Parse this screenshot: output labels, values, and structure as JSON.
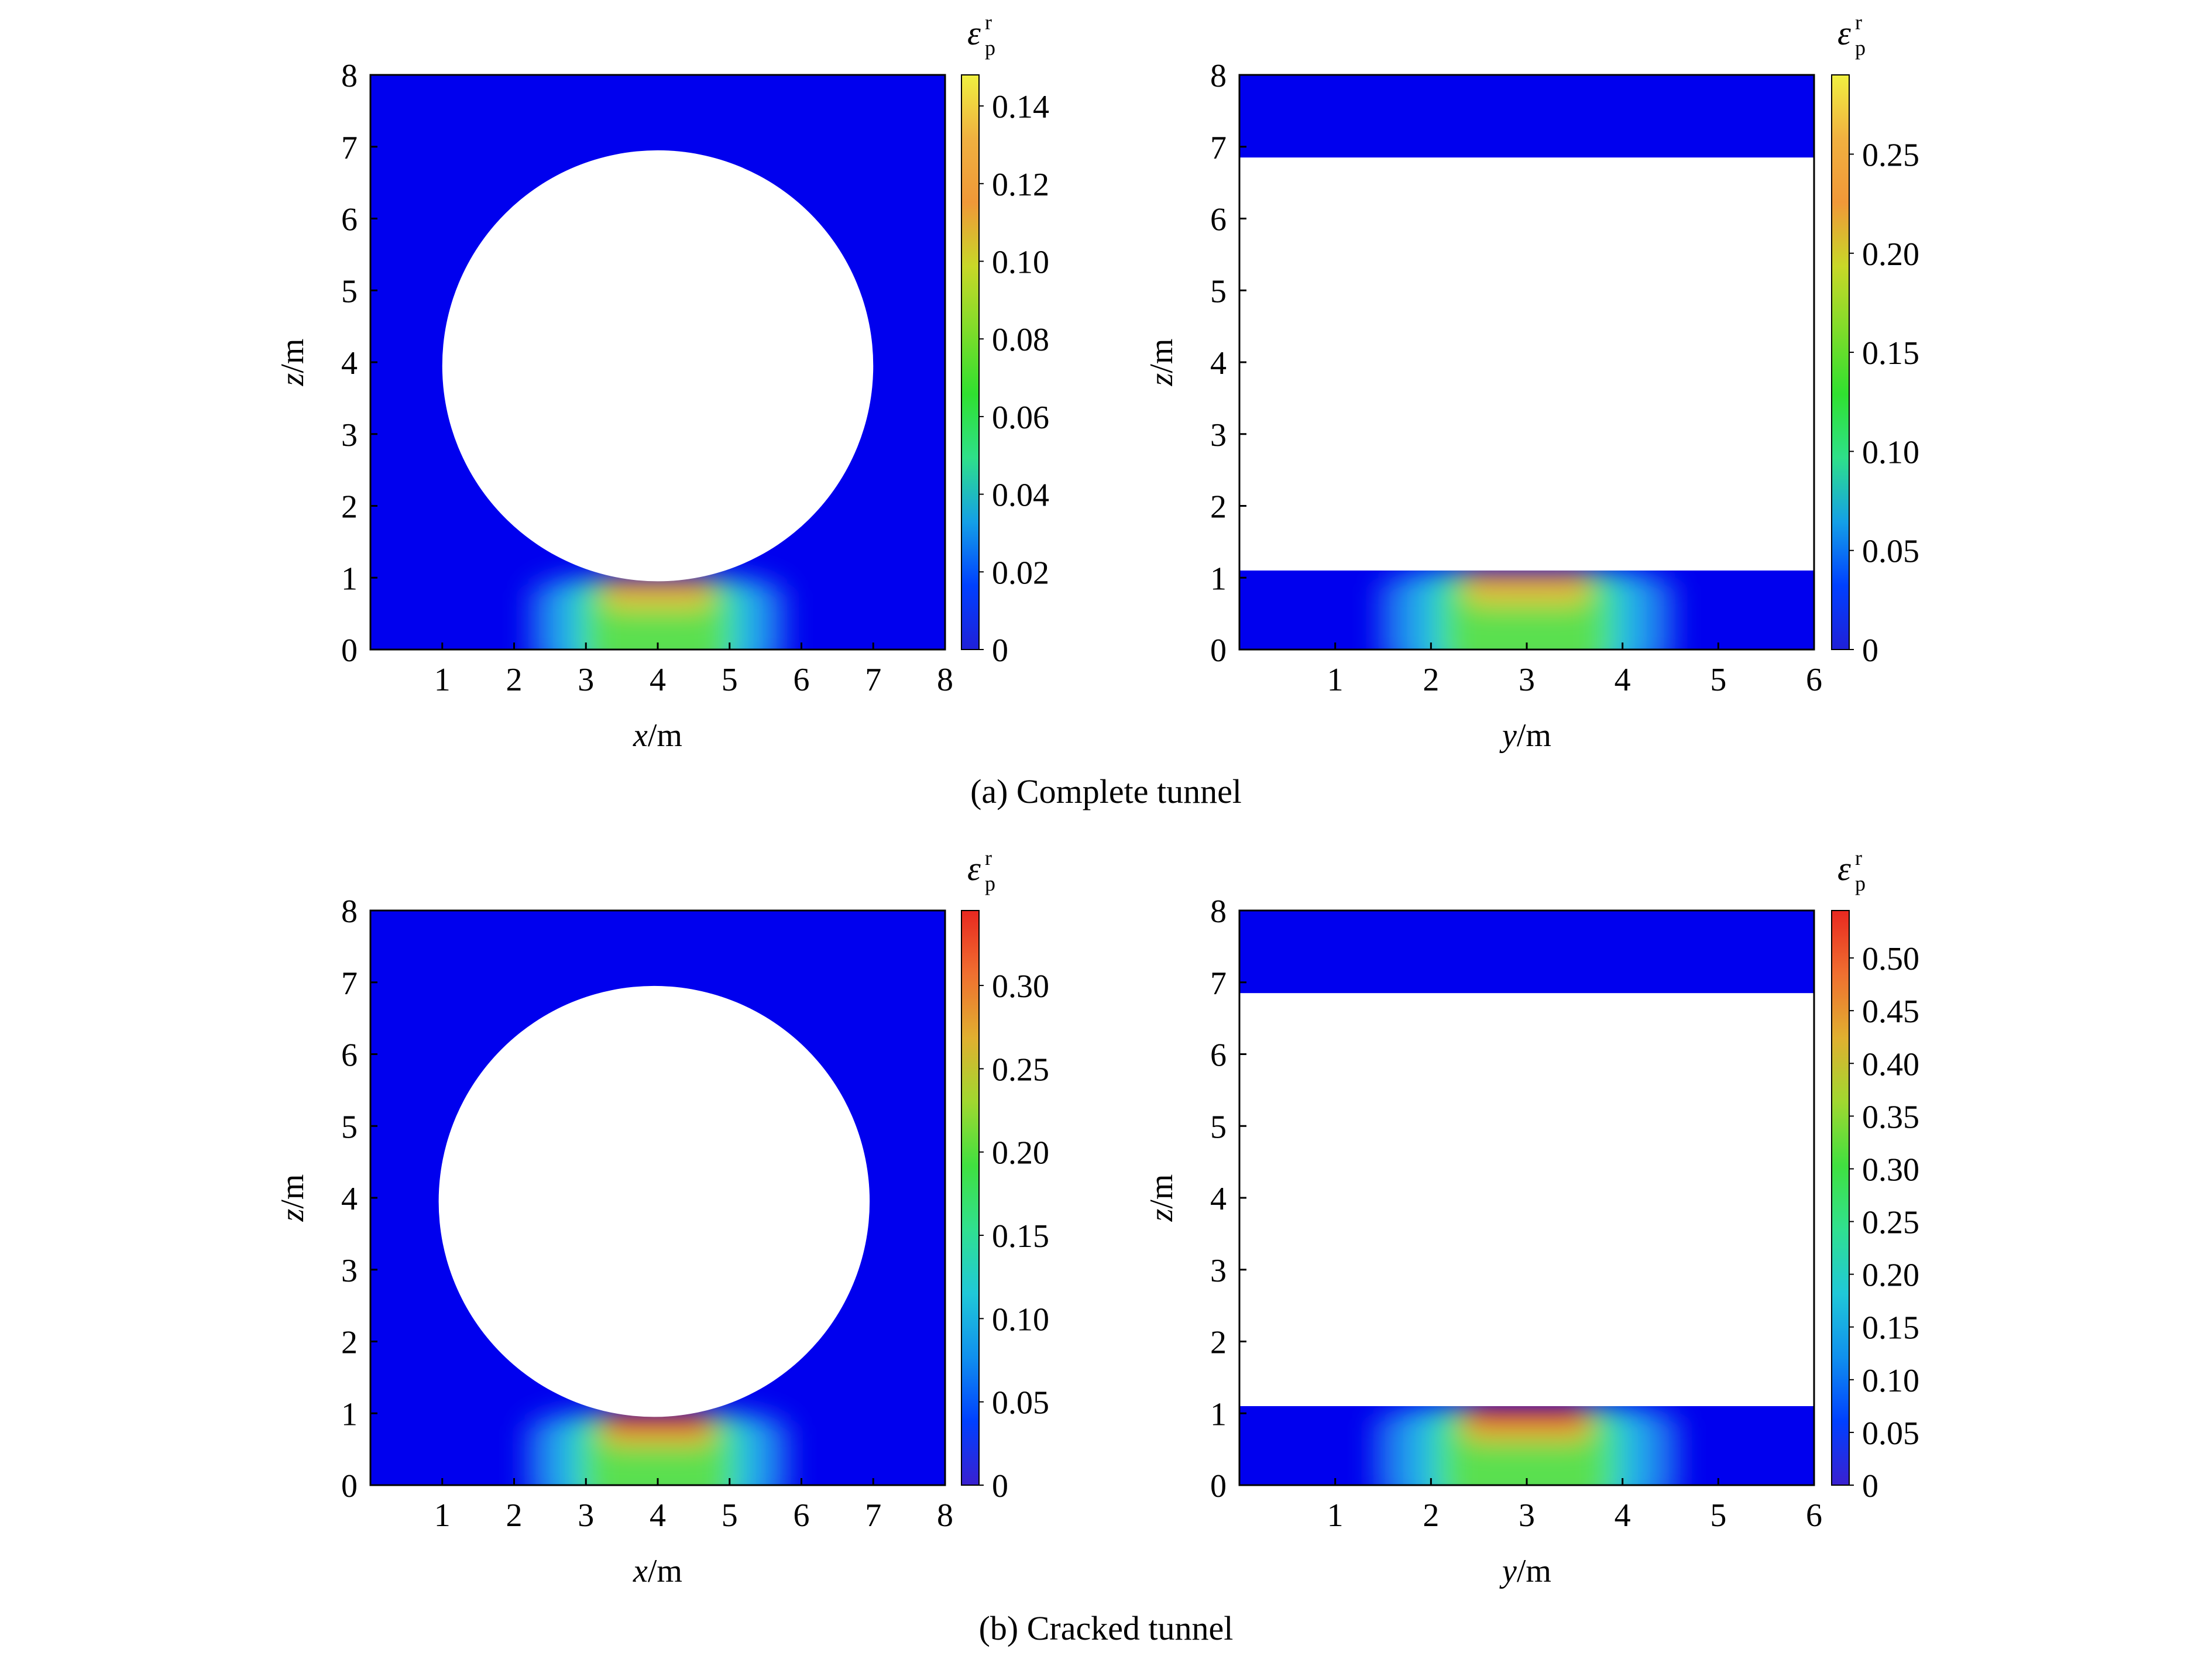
{
  "colorscale": [
    "#2020d8",
    "#0040ff",
    "#14a0e6",
    "#2ee08a",
    "#30e030",
    "#7fdc2a",
    "#d8d028",
    "#f0a030",
    "#f06030",
    "#e82820"
  ],
  "domain_color": "#0000ee",
  "captions": {
    "a": "(a) Complete tunnel",
    "b": "(b) Cracked tunnel"
  },
  "chart_data": [
    {
      "type": "heatmap",
      "panel": "a-left",
      "xlabel": {
        "italic": "x",
        "unit": "/m"
      },
      "ylabel": {
        "italic": "z",
        "unit": "/m"
      },
      "xlim": [
        0,
        8
      ],
      "ylim": [
        0,
        8
      ],
      "xticks": [
        "1",
        "2",
        "3",
        "4",
        "5",
        "6",
        "7",
        "8"
      ],
      "yticks": [
        "0",
        "1",
        "2",
        "3",
        "4",
        "5",
        "6",
        "7",
        "8"
      ],
      "cavity": {
        "shape": "circle",
        "cx": 4,
        "cz": 3.95,
        "r": 3
      },
      "strain_zone": {
        "center": 4,
        "half_width": 1.8,
        "z_top": 1.0,
        "peak": 0.14
      },
      "colorbar": {
        "label": "ε",
        "label_sub": "p",
        "label_sup": "r",
        "range": [
          0,
          0.148
        ],
        "ticks": [
          0,
          0.02,
          0.04,
          0.06,
          0.08,
          0.1,
          0.12,
          0.14
        ],
        "tick_labels": [
          "0",
          "0.02",
          "0.04",
          "0.06",
          "0.08",
          "0.10",
          "0.12",
          "0.14"
        ],
        "palette": "yellow-top"
      }
    },
    {
      "type": "heatmap",
      "panel": "a-right",
      "xlabel": {
        "italic": "y",
        "unit": "/m"
      },
      "ylabel": {
        "italic": "z",
        "unit": "/m"
      },
      "xlim": [
        0,
        6
      ],
      "ylim": [
        0,
        8
      ],
      "xticks": [
        "1",
        "2",
        "3",
        "4",
        "5",
        "6"
      ],
      "yticks": [
        "0",
        "1",
        "2",
        "3",
        "4",
        "5",
        "6",
        "7",
        "8"
      ],
      "cavity": {
        "shape": "band",
        "z_bottom": 1.1,
        "z_top": 6.85
      },
      "strain_zone": {
        "center": 3,
        "half_width": 1.55,
        "z_top": 1.1,
        "peak": 0.26
      },
      "colorbar": {
        "label": "ε",
        "label_sub": "p",
        "label_sup": "r",
        "range": [
          0,
          0.29
        ],
        "ticks": [
          0,
          0.05,
          0.1,
          0.15,
          0.2,
          0.25
        ],
        "tick_labels": [
          "0",
          "0.05",
          "0.10",
          "0.15",
          "0.20",
          "0.25"
        ],
        "palette": "yellow-top"
      }
    },
    {
      "type": "heatmap",
      "panel": "b-left",
      "xlabel": {
        "italic": "x",
        "unit": "/m"
      },
      "ylabel": {
        "italic": "z",
        "unit": "/m"
      },
      "xlim": [
        0,
        8
      ],
      "ylim": [
        0,
        8
      ],
      "xticks": [
        "1",
        "2",
        "3",
        "4",
        "5",
        "6",
        "7",
        "8"
      ],
      "yticks": [
        "0",
        "1",
        "2",
        "3",
        "4",
        "5",
        "6",
        "7",
        "8"
      ],
      "cavity": {
        "shape": "circle",
        "cx": 3.95,
        "cz": 3.95,
        "r": 3
      },
      "strain_zone": {
        "center": 4,
        "half_width": 1.85,
        "z_top": 1.0,
        "peak": 0.34
      },
      "colorbar": {
        "label": "ε",
        "label_sub": "p",
        "label_sup": "r",
        "range": [
          0,
          0.345
        ],
        "ticks": [
          0,
          0.05,
          0.1,
          0.15,
          0.2,
          0.25,
          0.3
        ],
        "tick_labels": [
          "0",
          "0.05",
          "0.10",
          "0.15",
          "0.20",
          "0.25",
          "0.30"
        ],
        "palette": "red-top"
      }
    },
    {
      "type": "heatmap",
      "panel": "b-right",
      "xlabel": {
        "italic": "y",
        "unit": "/m"
      },
      "ylabel": {
        "italic": "z",
        "unit": "/m"
      },
      "xlim": [
        0,
        6
      ],
      "ylim": [
        0,
        8
      ],
      "xticks": [
        "1",
        "2",
        "3",
        "4",
        "5",
        "6"
      ],
      "yticks": [
        "0",
        "1",
        "2",
        "3",
        "4",
        "5",
        "6",
        "7",
        "8"
      ],
      "cavity": {
        "shape": "band",
        "z_bottom": 1.1,
        "z_top": 6.85
      },
      "strain_zone": {
        "center": 3,
        "half_width": 1.6,
        "z_top": 1.1,
        "peak": 0.53
      },
      "colorbar": {
        "label": "ε",
        "label_sub": "p",
        "label_sup": "r",
        "range": [
          0,
          0.545
        ],
        "ticks": [
          0,
          0.05,
          0.1,
          0.15,
          0.2,
          0.25,
          0.3,
          0.35,
          0.4,
          0.45,
          0.5
        ],
        "tick_labels": [
          "0",
          "0.05",
          "0.10",
          "0.15",
          "0.20",
          "0.25",
          "0.30",
          "0.35",
          "0.40",
          "0.45",
          "0.50"
        ],
        "palette": "red-top"
      }
    }
  ]
}
